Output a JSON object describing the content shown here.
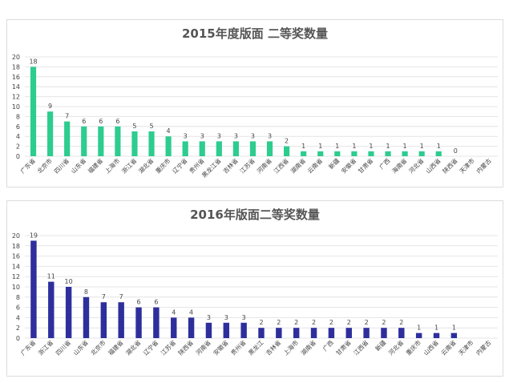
{
  "colors": {
    "series_2015": "#2dcc8f",
    "series_2016": "#2e2f9c"
  },
  "chart_data": [
    {
      "type": "bar",
      "title": "2015年度版面 二等奖数量",
      "ylim": [
        0,
        20
      ],
      "yticks": [
        0,
        2,
        4,
        6,
        8,
        10,
        12,
        14,
        16,
        18,
        20
      ],
      "grid": true,
      "categories": [
        "广东省",
        "北京市",
        "四川省",
        "山东省",
        "福建省",
        "上海市",
        "浙江省",
        "湖北省",
        "重庆市",
        "辽宁省",
        "贵州省",
        "黑龙江省",
        "吉林省",
        "江苏省",
        "河南省",
        "江西省",
        "湖南省",
        "云南省",
        "新疆",
        "安徽省",
        "甘肃省",
        "广西",
        "海南省",
        "河北省",
        "山西省",
        "陕西省",
        "天津市",
        "内蒙古"
      ],
      "values": [
        18,
        9,
        7,
        6,
        6,
        6,
        5,
        5,
        4,
        3,
        3,
        3,
        3,
        3,
        3,
        2,
        1,
        1,
        1,
        1,
        1,
        1,
        1,
        1,
        1,
        0,
        null,
        null
      ],
      "data_labels": [
        "18",
        "9",
        "7",
        "6",
        "6",
        "6",
        "5",
        "5",
        "4",
        "3",
        "3",
        "3",
        "3",
        "3",
        "3",
        "2",
        "1",
        "1",
        "1",
        "1",
        "1",
        "1",
        "1",
        "1",
        "1",
        "0",
        "",
        ""
      ]
    },
    {
      "type": "bar",
      "title": "2016年版面二等奖数量",
      "ylim": [
        0,
        20
      ],
      "yticks": [
        0,
        2,
        4,
        6,
        8,
        10,
        12,
        14,
        16,
        18,
        20
      ],
      "grid": true,
      "categories": [
        "广东省",
        "浙江省",
        "四川省",
        "山东省",
        "北京市",
        "福建省",
        "湖北省",
        "辽宁省",
        "江苏省",
        "陕西省",
        "河南省",
        "安徽省",
        "贵州省",
        "黑龙江",
        "吉林省",
        "上海市",
        "湖南省",
        "广西",
        "甘肃省",
        "江西省",
        "新疆",
        "河北省",
        "重庆市",
        "山西省",
        "云南省",
        "天津市",
        "内蒙古"
      ],
      "values": [
        19,
        11,
        10,
        8,
        7,
        7,
        6,
        6,
        4,
        4,
        3,
        3,
        3,
        2,
        2,
        2,
        2,
        2,
        2,
        2,
        2,
        2,
        1,
        1,
        1,
        null,
        null
      ],
      "data_labels": [
        "19",
        "11",
        "10",
        "8",
        "7",
        "7",
        "6",
        "6",
        "4",
        "4",
        "3",
        "3",
        "3",
        "2",
        "2",
        "2",
        "2",
        "2",
        "2",
        "2",
        "2",
        "2",
        "1",
        "1",
        "1",
        "",
        ""
      ]
    }
  ]
}
